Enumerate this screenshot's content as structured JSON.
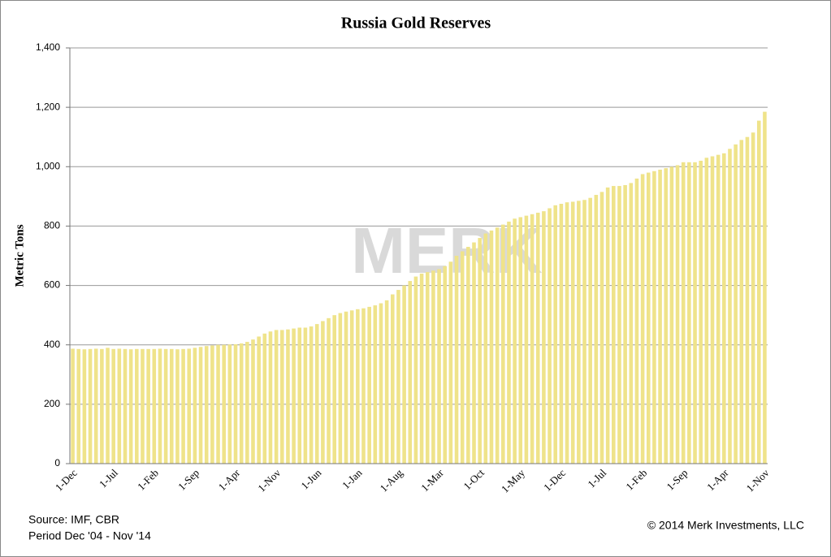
{
  "chart_data": {
    "type": "bar",
    "title": "Russia Gold Reserves",
    "y_label": "Metric Tons",
    "watermark": "MERK",
    "source": "Source: IMF, CBR",
    "period": "Period Dec '04 - Nov '14",
    "copyright": "© 2014 Merk Investments, LLC",
    "categories": [
      "1-Dec",
      null,
      null,
      null,
      null,
      null,
      null,
      "1-Jul",
      null,
      null,
      null,
      null,
      null,
      null,
      "1-Feb",
      null,
      null,
      null,
      null,
      null,
      null,
      "1-Sep",
      null,
      null,
      null,
      null,
      null,
      null,
      "1-Apr",
      null,
      null,
      null,
      null,
      null,
      null,
      "1-Nov",
      null,
      null,
      null,
      null,
      null,
      null,
      "1-Jun",
      null,
      null,
      null,
      null,
      null,
      null,
      "1-Jan",
      null,
      null,
      null,
      null,
      null,
      null,
      "1-Aug",
      null,
      null,
      null,
      null,
      null,
      null,
      "1-Mar",
      null,
      null,
      null,
      null,
      null,
      null,
      "1-Oct",
      null,
      null,
      null,
      null,
      null,
      null,
      "1-May",
      null,
      null,
      null,
      null,
      null,
      null,
      "1-Dec",
      null,
      null,
      null,
      null,
      null,
      null,
      "1-Jul",
      null,
      null,
      null,
      null,
      null,
      null,
      "1-Feb",
      null,
      null,
      null,
      null,
      null,
      null,
      "1-Sep",
      null,
      null,
      null,
      null,
      null,
      null,
      "1-Apr",
      null,
      null,
      null,
      null,
      null,
      null,
      "1-Nov"
    ],
    "values": [
      387,
      386,
      385,
      386,
      387,
      386,
      390,
      386,
      387,
      386,
      385,
      386,
      386,
      386,
      386,
      387,
      386,
      386,
      385,
      386,
      387,
      390,
      393,
      396,
      398,
      400,
      400,
      401,
      402,
      405,
      410,
      418,
      428,
      438,
      445,
      450,
      450,
      452,
      455,
      458,
      458,
      462,
      470,
      480,
      490,
      500,
      507,
      512,
      516,
      520,
      523,
      528,
      533,
      540,
      550,
      570,
      585,
      600,
      615,
      630,
      640,
      645,
      650,
      655,
      665,
      680,
      700,
      715,
      730,
      745,
      760,
      775,
      785,
      795,
      805,
      815,
      825,
      830,
      835,
      840,
      845,
      850,
      860,
      870,
      875,
      880,
      882,
      885,
      888,
      895,
      905,
      915,
      930,
      935,
      935,
      938,
      945,
      960,
      975,
      980,
      985,
      990,
      995,
      1000,
      1005,
      1015,
      1015,
      1015,
      1020,
      1030,
      1035,
      1040,
      1045,
      1060,
      1075,
      1090,
      1100,
      1115,
      1155,
      1185
    ],
    "color": "#efe38a",
    "ylim": [
      0,
      1400
    ],
    "yticks": [
      0,
      200,
      400,
      600,
      800,
      {
        "value": 1000,
        "label": "1,000"
      },
      {
        "value": 1200,
        "label": "1,200"
      },
      {
        "value": 1400,
        "label": "1,400"
      }
    ],
    "grid": true
  }
}
